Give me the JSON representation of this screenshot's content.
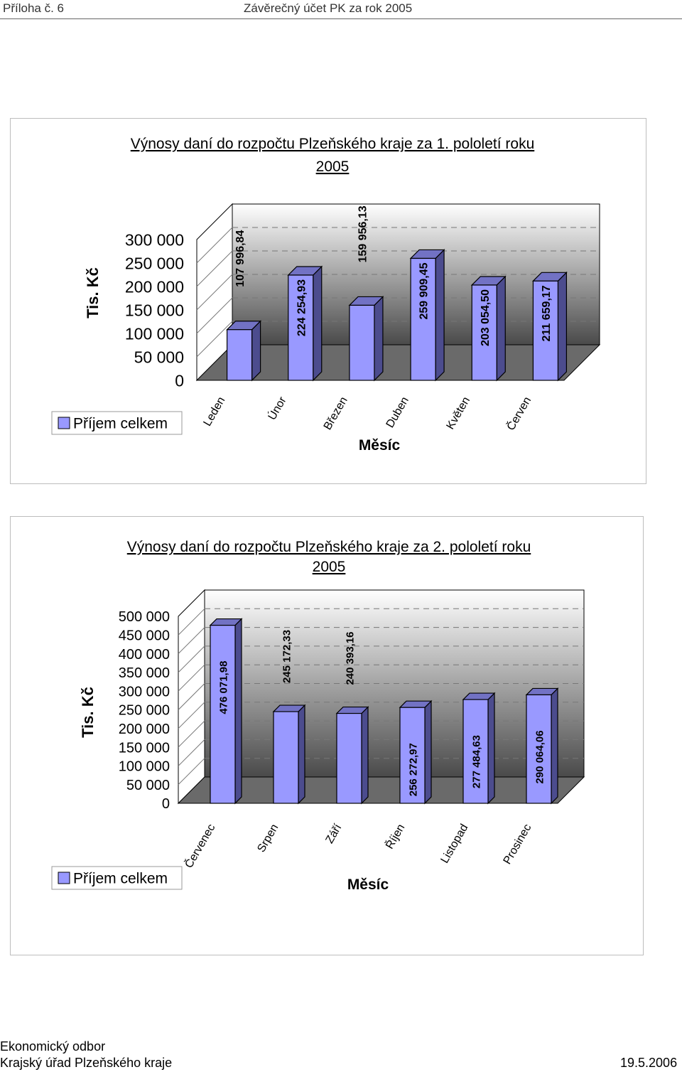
{
  "header": {
    "left": "Příloha č. 6",
    "center": "Závěrečný účet PK za rok 2005"
  },
  "footer": {
    "dept": "Ekonomický odbor",
    "office": "Krajský úřad Plzeňského kraje",
    "date": "19.5.2006"
  },
  "colors": {
    "bar_front": "#9999ff",
    "bar_top": "#7272c4",
    "bar_side": "#4c4c8e",
    "wall_top": "#ffffff",
    "wall_bottom": "#4a4a4a",
    "floor": "#6a6a6a"
  },
  "chart_data": [
    {
      "type": "bar",
      "title": "Výnosy daní do rozpočtu Plzeňského kraje za 1. pololetí roku",
      "title_line2": "2005",
      "ylabel": "Tis. Kč",
      "xlabel": "Měsíc",
      "legend": "Příjem celkem",
      "legend_position": "bottom-left",
      "ylim": [
        0,
        300000
      ],
      "yticks": [
        "300 000",
        "250 000",
        "200 000",
        "150 000",
        "100 000",
        "50 000",
        "0"
      ],
      "categories": [
        "Leden",
        "Únor",
        "Březen",
        "Duben",
        "Květen",
        "Červen"
      ],
      "values": [
        107996.84,
        224254.93,
        159956.13,
        259909.45,
        203054.5,
        211659.17
      ],
      "data_labels": [
        "107 996,84",
        "224 254,93",
        "159 956,13",
        "259 909,45",
        "203 054,50",
        "211 659,17"
      ],
      "label_inside": [
        false,
        true,
        false,
        true,
        true,
        true
      ],
      "grid": true
    },
    {
      "type": "bar",
      "title": "Výnosy daní do rozpočtu Plzeňského kraje za 2. pololetí roku",
      "title_line2": "2005",
      "ylabel": "Tis. Kč",
      "xlabel": "Měsíc",
      "legend": "Příjem celkem",
      "legend_position": "bottom-left",
      "ylim": [
        0,
        500000
      ],
      "yticks": [
        "500 000",
        "450 000",
        "400 000",
        "350 000",
        "300 000",
        "250 000",
        "200 000",
        "150 000",
        "100 000",
        "50 000",
        "0"
      ],
      "categories": [
        "Červenec",
        "Srpen",
        "Září",
        "Říjen",
        "Listopad",
        "Prosinec"
      ],
      "values": [
        476071.98,
        245172.33,
        240393.16,
        256272.97,
        277484.63,
        290064.06
      ],
      "data_labels": [
        "476 071,98",
        "245 172,33",
        "240 393,16",
        "256 272,97",
        "277 484,63",
        "290 064,06"
      ],
      "label_inside": [
        true,
        false,
        false,
        true,
        true,
        true
      ],
      "grid": true
    }
  ]
}
